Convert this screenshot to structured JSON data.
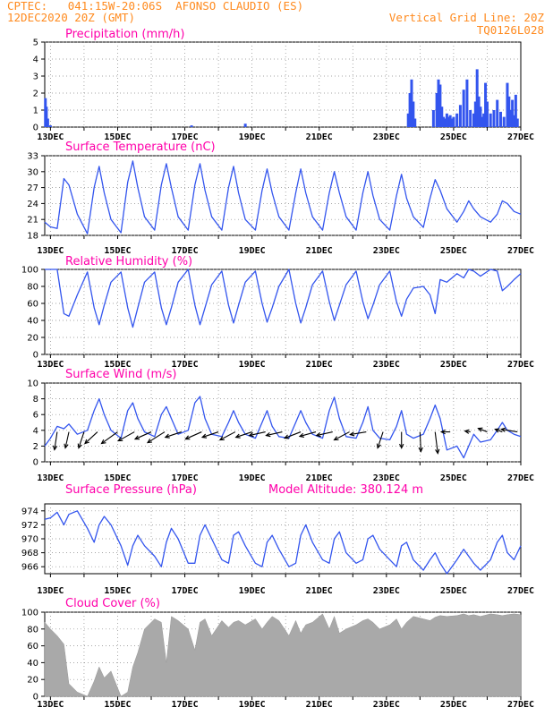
{
  "header": {
    "line1_left": "CPTEC:   041:15W-20:06S  AFONSO CLAUDIO (ES)",
    "line2_left": "12DEC2020 20Z (GMT)",
    "line2_right": "Vertical Grid Line: 20Z",
    "line3_right": "TQ0126L028"
  },
  "colors": {
    "header": "#ff8a1e",
    "title": "#ff00aa",
    "series": "#3355ee",
    "cloud": "#a9a9a9",
    "wind_arrow": "#000000"
  },
  "chart_data": [
    {
      "type": "bar",
      "title": "Precipitation (mm/h)",
      "x_labels": [
        "13DEC",
        "15DEC",
        "17DEC",
        "19DEC",
        "21DEC",
        "23DEC",
        "25DEC",
        "27DEC"
      ],
      "xlim": [
        12.83,
        27.0
      ],
      "ylim": [
        0,
        5
      ],
      "yticks": [
        0,
        1,
        2,
        3,
        4,
        5
      ],
      "x": [
        12.85,
        12.88,
        12.92,
        13.0,
        17.2,
        18.8,
        23.65,
        23.7,
        23.75,
        23.8,
        23.85,
        24.4,
        24.5,
        24.55,
        24.6,
        24.65,
        24.7,
        24.75,
        24.8,
        24.85,
        24.9,
        24.95,
        25.0,
        25.1,
        25.2,
        25.3,
        25.4,
        25.5,
        25.6,
        25.65,
        25.7,
        25.75,
        25.8,
        25.85,
        25.9,
        25.95,
        26.0,
        26.1,
        26.2,
        26.3,
        26.4,
        26.5,
        26.6,
        26.65,
        26.7,
        26.75,
        26.8,
        26.85,
        26.9
      ],
      "values": [
        1.7,
        1.2,
        0.5,
        0.1,
        0.1,
        0.2,
        0.8,
        2.0,
        2.8,
        1.5,
        0.5,
        1.0,
        2.0,
        2.8,
        2.5,
        1.2,
        0.6,
        0.5,
        0.8,
        0.6,
        0.7,
        0.5,
        0.6,
        0.8,
        1.3,
        2.2,
        2.8,
        1.0,
        0.8,
        1.5,
        3.4,
        1.8,
        1.2,
        0.6,
        0.8,
        2.6,
        1.5,
        0.8,
        1.0,
        1.6,
        0.9,
        0.6,
        2.6,
        1.8,
        1.0,
        1.6,
        0.7,
        1.9,
        0.5
      ]
    },
    {
      "type": "line",
      "title": "Surface Temperature (nC)",
      "x_labels": [
        "13DEC",
        "15DEC",
        "17DEC",
        "19DEC",
        "21DEC",
        "23DEC",
        "25DEC",
        "27DEC"
      ],
      "xlim": [
        12.83,
        27.0
      ],
      "ylim": [
        18,
        33
      ],
      "yticks": [
        18,
        21,
        24,
        27,
        30,
        33
      ],
      "x": [
        12.83,
        13.0,
        13.2,
        13.4,
        13.55,
        13.8,
        14.1,
        14.3,
        14.45,
        14.6,
        14.8,
        15.1,
        15.3,
        15.45,
        15.6,
        15.8,
        16.1,
        16.3,
        16.45,
        16.6,
        16.8,
        17.1,
        17.3,
        17.45,
        17.6,
        17.8,
        18.1,
        18.3,
        18.45,
        18.6,
        18.8,
        19.1,
        19.3,
        19.45,
        19.6,
        19.8,
        20.1,
        20.3,
        20.45,
        20.6,
        20.8,
        21.1,
        21.3,
        21.45,
        21.6,
        21.8,
        22.1,
        22.3,
        22.45,
        22.6,
        22.8,
        23.1,
        23.3,
        23.45,
        23.6,
        23.8,
        24.1,
        24.3,
        24.45,
        24.6,
        24.8,
        25.1,
        25.3,
        25.45,
        25.6,
        25.8,
        26.1,
        26.3,
        26.45,
        26.6,
        26.8,
        27.0
      ],
      "series": [
        {
          "values": [
            20.5,
            19.6,
            19.3,
            28.7,
            27.5,
            22.0,
            18.3,
            27.0,
            31.0,
            26.0,
            21.0,
            18.5,
            28.0,
            32.0,
            27.0,
            21.5,
            19.0,
            27.5,
            31.5,
            27.0,
            21.5,
            19.0,
            27.5,
            31.5,
            26.5,
            21.5,
            19.0,
            27.0,
            31.0,
            26.0,
            21.0,
            19.0,
            26.5,
            30.5,
            26.0,
            21.5,
            19.0,
            26.0,
            30.5,
            26.0,
            21.5,
            19.0,
            26.0,
            30.0,
            26.0,
            21.5,
            19.0,
            26.0,
            30.0,
            25.5,
            21.0,
            19.0,
            25.5,
            29.5,
            25.0,
            21.5,
            19.5,
            25.0,
            28.5,
            26.5,
            23.0,
            20.5,
            22.5,
            24.5,
            23.0,
            21.5,
            20.5,
            22.0,
            24.5,
            24.0,
            22.5,
            22.0
          ]
        }
      ]
    },
    {
      "type": "line",
      "title": "Relative Humidity (%)",
      "x_labels": [
        "13DEC",
        "15DEC",
        "17DEC",
        "19DEC",
        "21DEC",
        "23DEC",
        "25DEC",
        "27DEC"
      ],
      "xlim": [
        12.83,
        27.0
      ],
      "ylim": [
        0,
        100
      ],
      "yticks": [
        0,
        20,
        40,
        60,
        80,
        100
      ],
      "x": [
        12.83,
        13.0,
        13.2,
        13.4,
        13.55,
        13.8,
        14.1,
        14.3,
        14.45,
        14.6,
        14.8,
        15.1,
        15.3,
        15.45,
        15.6,
        15.8,
        16.1,
        16.3,
        16.45,
        16.6,
        16.8,
        17.1,
        17.3,
        17.45,
        17.6,
        17.8,
        18.1,
        18.3,
        18.45,
        18.6,
        18.8,
        19.1,
        19.3,
        19.45,
        19.6,
        19.8,
        20.1,
        20.3,
        20.45,
        20.6,
        20.8,
        21.1,
        21.3,
        21.45,
        21.6,
        21.8,
        22.1,
        22.3,
        22.45,
        22.6,
        22.8,
        23.1,
        23.3,
        23.45,
        23.6,
        23.8,
        24.1,
        24.3,
        24.45,
        24.6,
        24.8,
        25.1,
        25.3,
        25.45,
        25.6,
        25.8,
        26.1,
        26.3,
        26.45,
        26.6,
        26.8,
        27.0
      ],
      "series": [
        {
          "values": [
            100,
            100,
            100,
            48,
            45,
            70,
            97,
            55,
            35,
            58,
            85,
            97,
            55,
            32,
            55,
            85,
            97,
            55,
            35,
            55,
            85,
            100,
            58,
            35,
            55,
            82,
            98,
            58,
            37,
            58,
            85,
            98,
            60,
            38,
            55,
            80,
            100,
            60,
            37,
            55,
            82,
            98,
            62,
            40,
            58,
            82,
            98,
            62,
            42,
            58,
            82,
            98,
            62,
            45,
            65,
            78,
            80,
            70,
            48,
            88,
            85,
            95,
            90,
            100,
            98,
            92,
            100,
            98,
            75,
            80,
            88,
            95
          ]
        }
      ]
    },
    {
      "type": "line",
      "title": "Surface Wind (m/s)",
      "x_labels": [
        "13DEC",
        "15DEC",
        "17DEC",
        "19DEC",
        "21DEC",
        "23DEC",
        "25DEC",
        "27DEC"
      ],
      "xlim": [
        12.83,
        27.0
      ],
      "ylim": [
        0,
        10
      ],
      "yticks": [
        0,
        2,
        4,
        6,
        8,
        10
      ],
      "x": [
        12.83,
        13.0,
        13.2,
        13.4,
        13.55,
        13.8,
        14.1,
        14.3,
        14.45,
        14.6,
        14.8,
        15.1,
        15.3,
        15.45,
        15.6,
        15.8,
        16.1,
        16.3,
        16.45,
        16.6,
        16.8,
        17.1,
        17.3,
        17.45,
        17.6,
        17.8,
        18.1,
        18.3,
        18.45,
        18.6,
        18.8,
        19.1,
        19.3,
        19.45,
        19.6,
        19.8,
        20.1,
        20.3,
        20.45,
        20.6,
        20.8,
        21.1,
        21.3,
        21.45,
        21.6,
        21.8,
        22.1,
        22.3,
        22.45,
        22.6,
        22.8,
        23.1,
        23.3,
        23.45,
        23.6,
        23.8,
        24.1,
        24.3,
        24.45,
        24.6,
        24.8,
        25.1,
        25.3,
        25.45,
        25.6,
        25.8,
        26.1,
        26.3,
        26.45,
        26.6,
        26.8,
        27.0
      ],
      "series": [
        {
          "values": [
            2.0,
            3.0,
            4.5,
            4.2,
            4.8,
            3.5,
            4.0,
            6.5,
            8.0,
            6.0,
            4.0,
            3.0,
            6.5,
            7.5,
            5.5,
            3.8,
            3.2,
            6.0,
            7.0,
            5.5,
            3.5,
            4.0,
            7.5,
            8.3,
            5.5,
            3.5,
            3.2,
            5.0,
            6.5,
            5.0,
            3.5,
            3.0,
            5.0,
            6.5,
            4.5,
            3.2,
            3.0,
            5.0,
            6.5,
            5.0,
            3.5,
            3.0,
            6.5,
            8.2,
            5.5,
            3.2,
            3.0,
            5.0,
            7.0,
            4.0,
            3.0,
            2.8,
            4.5,
            6.5,
            3.5,
            3.0,
            3.5,
            5.5,
            7.2,
            5.5,
            1.5,
            2.0,
            0.5,
            2.0,
            3.5,
            2.5,
            2.8,
            4.0,
            5.0,
            4.0,
            3.5,
            3.2
          ]
        }
      ],
      "wind_vectors": [
        {
          "x": 13.2,
          "u": -0.3,
          "v": -2.0
        },
        {
          "x": 13.55,
          "u": -0.4,
          "v": -1.8
        },
        {
          "x": 14.0,
          "u": -0.6,
          "v": -1.8
        },
        {
          "x": 14.4,
          "u": -1.4,
          "v": -1.3
        },
        {
          "x": 15.0,
          "u": -1.8,
          "v": -1.3
        },
        {
          "x": 15.5,
          "u": -1.8,
          "v": -1.0
        },
        {
          "x": 16.0,
          "u": -1.8,
          "v": -0.8
        },
        {
          "x": 16.4,
          "u": -1.9,
          "v": -1.2
        },
        {
          "x": 16.9,
          "u": -1.8,
          "v": -0.6
        },
        {
          "x": 17.5,
          "u": -1.8,
          "v": -0.8
        },
        {
          "x": 18.0,
          "u": -1.8,
          "v": -0.6
        },
        {
          "x": 18.5,
          "u": -1.7,
          "v": -0.9
        },
        {
          "x": 19.0,
          "u": -1.8,
          "v": -0.6
        },
        {
          "x": 19.4,
          "u": -1.8,
          "v": -0.4
        },
        {
          "x": 19.9,
          "u": -1.8,
          "v": -0.4
        },
        {
          "x": 20.45,
          "u": -1.8,
          "v": -0.7
        },
        {
          "x": 20.9,
          "u": -1.8,
          "v": -0.5
        },
        {
          "x": 21.4,
          "u": -1.8,
          "v": -0.4
        },
        {
          "x": 21.9,
          "u": -1.7,
          "v": -0.9
        },
        {
          "x": 22.4,
          "u": -1.8,
          "v": -0.3
        },
        {
          "x": 22.9,
          "u": -0.6,
          "v": -1.8
        },
        {
          "x": 23.45,
          "u": 0.0,
          "v": -1.8
        },
        {
          "x": 24.0,
          "u": 0.1,
          "v": -2.2
        },
        {
          "x": 24.45,
          "u": 0.3,
          "v": -2.4
        },
        {
          "x": 24.9,
          "u": -1.0,
          "v": 0.0
        },
        {
          "x": 25.5,
          "u": -0.6,
          "v": 0.1
        },
        {
          "x": 26.0,
          "u": -1.0,
          "v": 0.4
        },
        {
          "x": 26.45,
          "u": -0.8,
          "v": 0.3
        },
        {
          "x": 26.9,
          "u": -1.8,
          "v": 0.3
        }
      ]
    },
    {
      "type": "line",
      "title": "Surface Pressure (hPa)",
      "annotation": "Model Altitude: 380.124 m",
      "x_labels": [
        "13DEC",
        "15DEC",
        "17DEC",
        "19DEC",
        "21DEC",
        "23DEC",
        "25DEC",
        "27DEC"
      ],
      "xlim": [
        12.83,
        27.0
      ],
      "ylim": [
        965,
        975
      ],
      "yticks": [
        966,
        968,
        970,
        972,
        974
      ],
      "x": [
        12.83,
        13.0,
        13.2,
        13.4,
        13.55,
        13.8,
        14.1,
        14.3,
        14.45,
        14.6,
        14.8,
        15.1,
        15.3,
        15.45,
        15.6,
        15.8,
        16.1,
        16.3,
        16.45,
        16.6,
        16.8,
        17.1,
        17.3,
        17.45,
        17.6,
        17.8,
        18.1,
        18.3,
        18.45,
        18.6,
        18.8,
        19.1,
        19.3,
        19.45,
        19.6,
        19.8,
        20.1,
        20.3,
        20.45,
        20.6,
        20.8,
        21.1,
        21.3,
        21.45,
        21.6,
        21.8,
        22.1,
        22.3,
        22.45,
        22.6,
        22.8,
        23.1,
        23.3,
        23.45,
        23.6,
        23.8,
        24.1,
        24.3,
        24.45,
        24.6,
        24.8,
        25.1,
        25.3,
        25.45,
        25.6,
        25.8,
        26.1,
        26.3,
        26.45,
        26.6,
        26.8,
        27.0
      ],
      "series": [
        {
          "values": [
            972.8,
            973.0,
            973.8,
            972.0,
            973.5,
            974.0,
            971.5,
            969.5,
            972.0,
            973.2,
            972.0,
            969.0,
            966.2,
            969.0,
            970.5,
            969.0,
            967.5,
            966.0,
            969.5,
            971.5,
            970.0,
            966.5,
            966.5,
            970.5,
            972.0,
            970.0,
            967.0,
            966.5,
            970.5,
            971.0,
            969.0,
            966.5,
            966.0,
            969.5,
            970.5,
            968.5,
            966.0,
            966.5,
            970.5,
            972.0,
            969.5,
            967.0,
            966.5,
            970.0,
            971.0,
            968.0,
            966.5,
            967.0,
            970.0,
            970.5,
            968.5,
            967.0,
            966.0,
            969.0,
            969.5,
            967.0,
            965.5,
            967.0,
            968.0,
            966.5,
            965.0,
            967.0,
            968.5,
            967.5,
            966.5,
            965.5,
            967.0,
            969.5,
            970.5,
            968.0,
            967.0,
            969.0
          ]
        }
      ]
    },
    {
      "type": "area",
      "title": "Cloud Cover (%)",
      "x_labels": [
        "13DEC",
        "15DEC",
        "17DEC",
        "19DEC",
        "21DEC",
        "23DEC",
        "25DEC",
        "27DEC"
      ],
      "xlim": [
        12.83,
        27.0
      ],
      "ylim": [
        0,
        100
      ],
      "yticks": [
        0,
        20,
        40,
        60,
        80,
        100
      ],
      "x": [
        12.83,
        13.0,
        13.2,
        13.4,
        13.55,
        13.8,
        14.1,
        14.3,
        14.45,
        14.6,
        14.8,
        15.1,
        15.3,
        15.45,
        15.6,
        15.8,
        16.1,
        16.3,
        16.45,
        16.6,
        16.8,
        17.1,
        17.3,
        17.45,
        17.6,
        17.8,
        18.1,
        18.3,
        18.45,
        18.6,
        18.8,
        19.1,
        19.3,
        19.45,
        19.6,
        19.8,
        20.1,
        20.3,
        20.45,
        20.6,
        20.8,
        21.1,
        21.3,
        21.45,
        21.6,
        21.8,
        22.1,
        22.3,
        22.45,
        22.6,
        22.8,
        23.1,
        23.3,
        23.45,
        23.6,
        23.8,
        24.1,
        24.3,
        24.45,
        24.6,
        24.8,
        25.1,
        25.3,
        25.45,
        25.6,
        25.8,
        26.1,
        26.3,
        26.45,
        26.6,
        26.8,
        27.0
      ],
      "series": [
        {
          "values": [
            88,
            80,
            72,
            62,
            15,
            5,
            0,
            18,
            35,
            22,
            30,
            0,
            5,
            35,
            52,
            80,
            92,
            88,
            40,
            95,
            90,
            80,
            55,
            88,
            92,
            72,
            90,
            82,
            88,
            90,
            85,
            92,
            80,
            88,
            95,
            90,
            72,
            90,
            75,
            85,
            88,
            98,
            80,
            95,
            75,
            80,
            85,
            90,
            92,
            88,
            80,
            85,
            92,
            80,
            88,
            95,
            92,
            90,
            94,
            96,
            95,
            96,
            98,
            96,
            97,
            95,
            98,
            97,
            96,
            97,
            98,
            97
          ]
        }
      ]
    }
  ]
}
